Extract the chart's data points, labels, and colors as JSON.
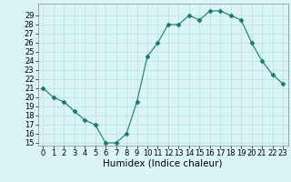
{
  "x": [
    0,
    1,
    2,
    3,
    4,
    5,
    6,
    7,
    8,
    9,
    10,
    11,
    12,
    13,
    14,
    15,
    16,
    17,
    18,
    19,
    20,
    21,
    22,
    23
  ],
  "y": [
    21,
    20,
    19.5,
    18.5,
    17.5,
    17,
    15,
    15,
    16,
    19.5,
    24.5,
    26,
    28,
    28,
    29,
    28.5,
    29.5,
    29.5,
    29,
    28.5,
    26,
    24,
    22.5,
    21.5
  ],
  "xlabel": "Humidex (Indice chaleur)",
  "ylabel": "",
  "ylim": [
    15,
    30
  ],
  "xlim": [
    -0.5,
    23.5
  ],
  "yticks": [
    15,
    16,
    17,
    18,
    19,
    20,
    21,
    22,
    23,
    24,
    25,
    26,
    27,
    28,
    29
  ],
  "xticks": [
    0,
    1,
    2,
    3,
    4,
    5,
    6,
    7,
    8,
    9,
    10,
    11,
    12,
    13,
    14,
    15,
    16,
    17,
    18,
    19,
    20,
    21,
    22,
    23
  ],
  "line_color": "#1a7a6e",
  "marker": "D",
  "marker_size": 2.5,
  "bg_color": "#d9f5f5",
  "grid_color": "#b8e0e0",
  "tick_fontsize": 6,
  "xlabel_fontsize": 7.5
}
